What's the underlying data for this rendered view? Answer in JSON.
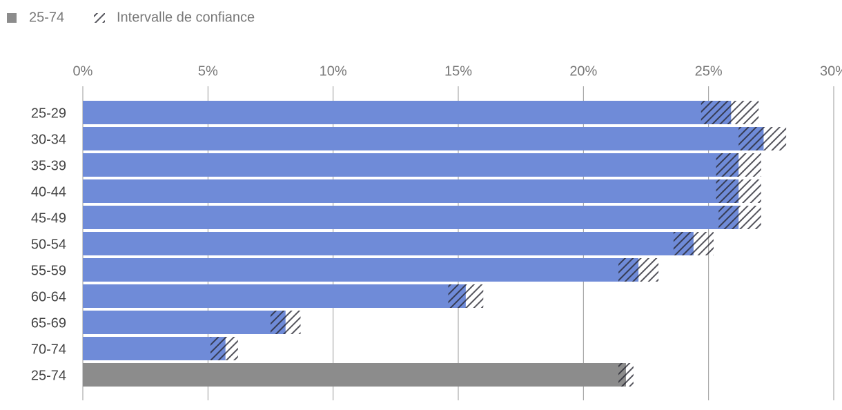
{
  "chart_data": {
    "type": "bar",
    "orientation": "horizontal",
    "legend": [
      {
        "label": "25-74",
        "color": "#8c8c8c"
      },
      {
        "label": "Intervalle de confiance",
        "color": "#555555"
      }
    ],
    "categories": [
      "25-29",
      "30-34",
      "35-39",
      "40-44",
      "45-49",
      "50-54",
      "55-59",
      "60-64",
      "65-69",
      "70-74",
      "25-74"
    ],
    "values": [
      25.9,
      27.2,
      26.2,
      26.2,
      26.2,
      24.4,
      22.2,
      15.3,
      8.1,
      5.7,
      21.7
    ],
    "lower": [
      24.7,
      26.2,
      25.3,
      25.3,
      25.4,
      23.6,
      21.4,
      14.6,
      7.5,
      5.1,
      21.4
    ],
    "upper": [
      27.0,
      28.1,
      27.1,
      27.1,
      27.1,
      25.2,
      23.0,
      16.0,
      8.7,
      6.2,
      22.0
    ],
    "bar_colors": [
      "#6f8bd8",
      "#6f8bd8",
      "#6f8bd8",
      "#6f8bd8",
      "#6f8bd8",
      "#6f8bd8",
      "#6f8bd8",
      "#6f8bd8",
      "#6f8bd8",
      "#6f8bd8",
      "#8c8c8c"
    ],
    "xlim": [
      0,
      30
    ],
    "xticks": [
      {
        "value": 0,
        "label": "0%"
      },
      {
        "value": 5,
        "label": "5%"
      },
      {
        "value": 10,
        "label": "10%"
      },
      {
        "value": 15,
        "label": "15%"
      },
      {
        "value": 20,
        "label": "20%"
      },
      {
        "value": 25,
        "label": "25%"
      },
      {
        "value": 30,
        "label": "30%"
      }
    ],
    "grid": true
  }
}
